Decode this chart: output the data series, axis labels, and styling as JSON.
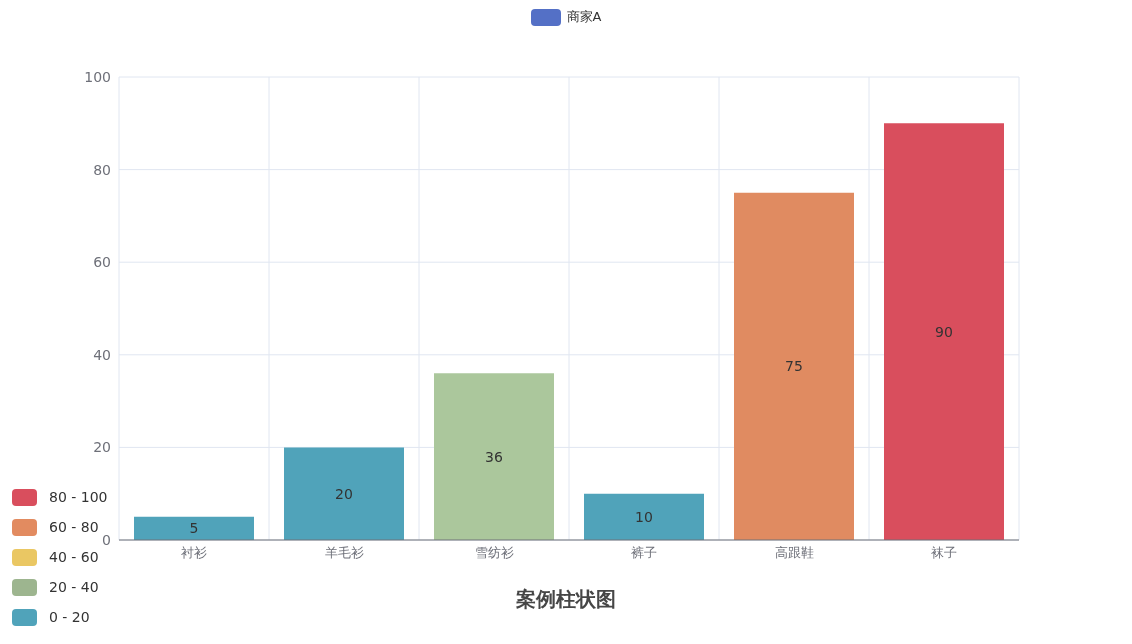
{
  "chart_data": {
    "type": "bar",
    "title": "案例柱状图",
    "categories": [
      "衬衫",
      "羊毛衫",
      "雪纺衫",
      "裤子",
      "高跟鞋",
      "袜子"
    ],
    "series": [
      {
        "name": "商家A",
        "color": "#5470c6",
        "values": [
          5,
          20,
          36,
          10,
          75,
          90
        ],
        "colors": [
          "#50a3ba",
          "#50a3ba",
          "#abc79c",
          "#50a3ba",
          "#e08b61",
          "#d94e5d"
        ]
      }
    ],
    "ylim": [
      0,
      100
    ],
    "yticks": [
      0,
      20,
      40,
      60,
      80,
      100
    ],
    "grid": true,
    "legend": "top",
    "data_labels": true,
    "annotations": [
      "80 - 100",
      "60 - 80",
      "40 - 60",
      "20 - 40",
      "0 - 20"
    ]
  }
}
